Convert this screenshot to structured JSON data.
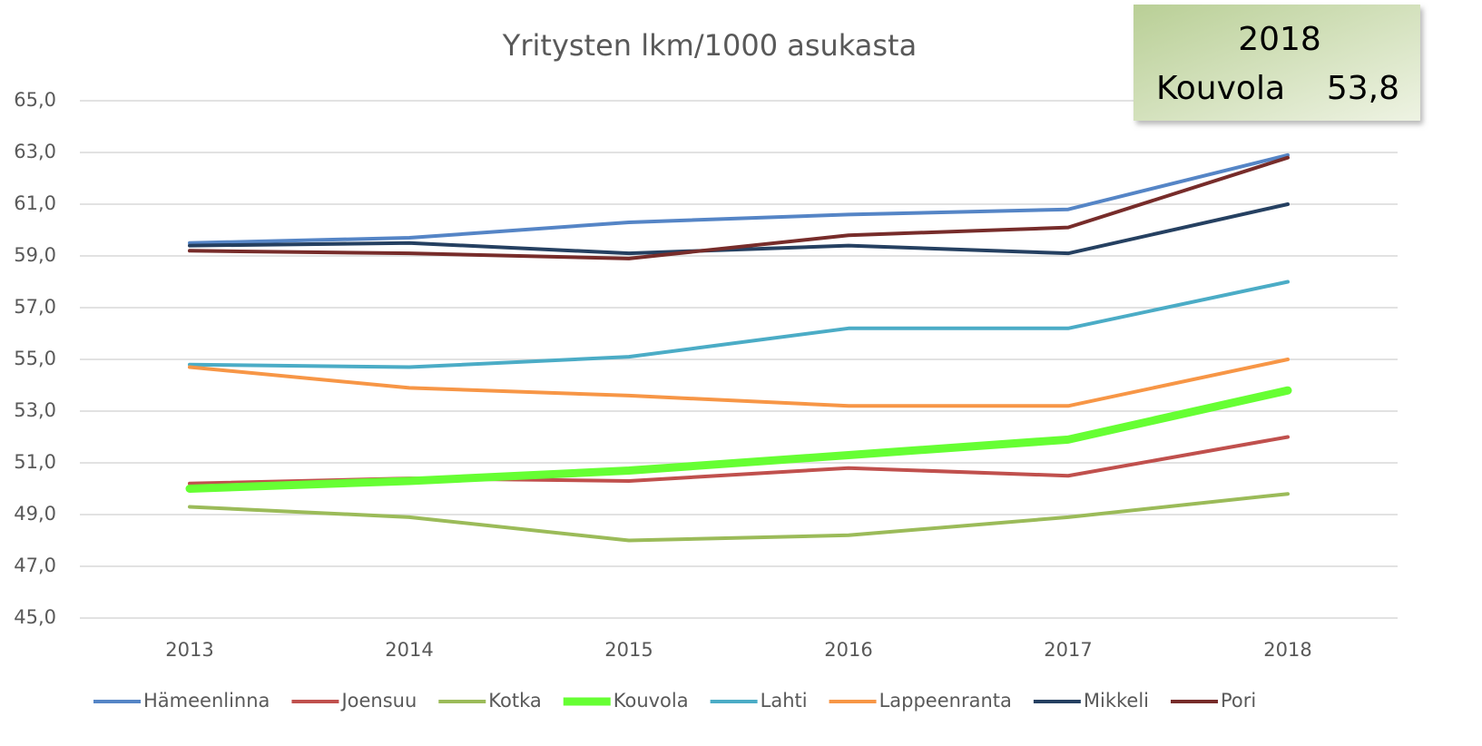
{
  "chart_data": {
    "type": "line",
    "title": "Yritysten lkm/1000 asukasta",
    "categories": [
      "2013",
      "2014",
      "2015",
      "2016",
      "2017",
      "2018"
    ],
    "series": [
      {
        "name": "Hämeenlinna",
        "color": "#5585c6",
        "line_width": 4,
        "values": [
          59.5,
          59.7,
          60.3,
          60.6,
          60.8,
          62.9
        ]
      },
      {
        "name": "Joensuu",
        "color": "#c0504d",
        "line_width": 4,
        "values": [
          50.2,
          50.4,
          50.3,
          50.8,
          50.5,
          52.0
        ]
      },
      {
        "name": "Kotka",
        "color": "#9bbb59",
        "line_width": 4,
        "values": [
          49.3,
          48.9,
          48.0,
          48.2,
          48.9,
          49.8
        ]
      },
      {
        "name": "Kouvola",
        "color": "#66ff33",
        "line_width": 9,
        "values": [
          50.0,
          50.3,
          50.7,
          51.3,
          51.9,
          53.8
        ]
      },
      {
        "name": "Lahti",
        "color": "#4bacc6",
        "line_width": 4,
        "values": [
          54.8,
          54.7,
          55.1,
          56.2,
          56.2,
          58.0
        ]
      },
      {
        "name": "Lappeenranta",
        "color": "#f79646",
        "line_width": 4,
        "values": [
          54.7,
          53.9,
          53.6,
          53.2,
          53.2,
          55.0
        ]
      },
      {
        "name": "Mikkeli",
        "color": "#254061",
        "line_width": 4,
        "values": [
          59.4,
          59.5,
          59.1,
          59.4,
          59.1,
          61.0
        ]
      },
      {
        "name": "Pori",
        "color": "#772c2a",
        "line_width": 4,
        "values": [
          59.2,
          59.1,
          58.9,
          59.8,
          60.1,
          62.8
        ]
      }
    ],
    "ylim": [
      45,
      65
    ],
    "yticks": [
      {
        "value": 45,
        "label": "45,0"
      },
      {
        "value": 47,
        "label": "47,0"
      },
      {
        "value": 49,
        "label": "49,0"
      },
      {
        "value": 51,
        "label": "51,0"
      },
      {
        "value": 53,
        "label": "53,0"
      },
      {
        "value": 55,
        "label": "55,0"
      },
      {
        "value": 57,
        "label": "57,0"
      },
      {
        "value": 59,
        "label": "59,0"
      },
      {
        "value": 61,
        "label": "61,0"
      },
      {
        "value": 63,
        "label": "63,0"
      },
      {
        "value": 65,
        "label": "65,0"
      }
    ],
    "grid": true,
    "legend": "bottom",
    "annotation": {
      "year": "2018",
      "name": "Kouvola",
      "value": "53,8"
    }
  }
}
